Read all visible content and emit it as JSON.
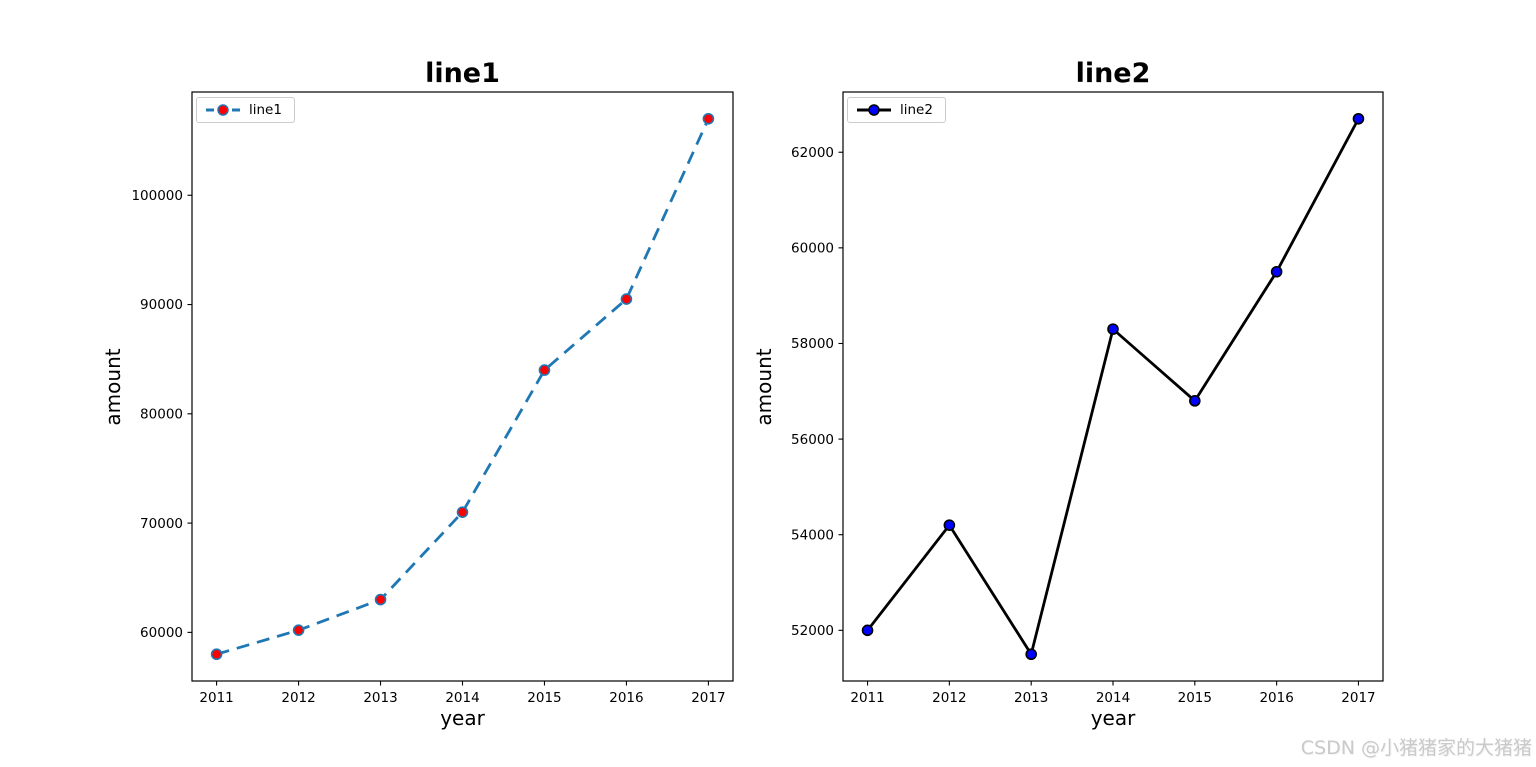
{
  "figure": {
    "background": "#ffffff",
    "watermark": "CSDN @小猪猪家的大猪猪",
    "watermark_color": "#cacaca"
  },
  "chart_data": [
    {
      "type": "line",
      "title": "line1",
      "xlabel": "year",
      "ylabel": "amount",
      "x": [
        2011,
        2012,
        2013,
        2014,
        2015,
        2016,
        2017
      ],
      "xticks": [
        2011,
        2012,
        2013,
        2014,
        2015,
        2016,
        2017
      ],
      "yticks": [
        60000,
        70000,
        80000,
        90000,
        100000
      ],
      "xlim": [
        2010.7,
        2017.3
      ],
      "ylim": [
        55550,
        109450
      ],
      "grid": false,
      "legend": {
        "loc": "upper left",
        "label": "line1"
      },
      "series": [
        {
          "name": "line1",
          "values": [
            58000,
            60200,
            63000,
            71000,
            84000,
            90500,
            107000
          ],
          "line_color": "#1f77b4",
          "line_style": "dashed",
          "line_width": 2.8,
          "marker": "circle",
          "marker_face_color": "#ff0000",
          "marker_edge_color": "#1f77b4"
        }
      ]
    },
    {
      "type": "line",
      "title": "line2",
      "xlabel": "year",
      "ylabel": "amount",
      "x": [
        2011,
        2012,
        2013,
        2014,
        2015,
        2016,
        2017
      ],
      "xticks": [
        2011,
        2012,
        2013,
        2014,
        2015,
        2016,
        2017
      ],
      "yticks": [
        52000,
        54000,
        56000,
        58000,
        60000,
        62000
      ],
      "xlim": [
        2010.7,
        2017.3
      ],
      "ylim": [
        50940,
        63260
      ],
      "grid": false,
      "legend": {
        "loc": "upper left",
        "label": "line2"
      },
      "series": [
        {
          "name": "line2",
          "values": [
            52000,
            54200,
            51500,
            58300,
            56800,
            59500,
            62700
          ],
          "line_color": "#000000",
          "line_style": "solid",
          "line_width": 2.8,
          "marker": "circle",
          "marker_face_color": "#0000ff",
          "marker_edge_color": "#000000"
        }
      ]
    }
  ]
}
